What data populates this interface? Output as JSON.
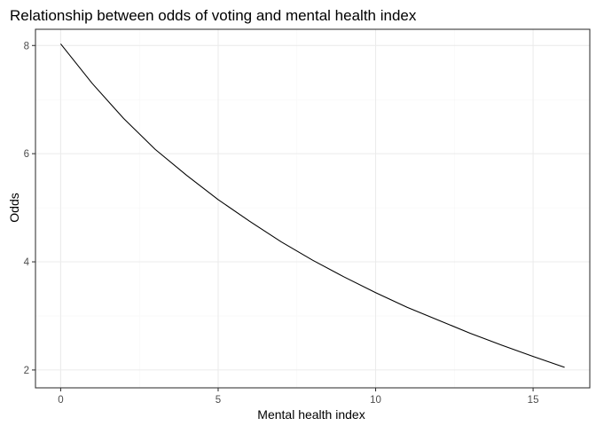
{
  "chart_data": {
    "type": "line",
    "title": "Relationship between odds of voting and mental health index",
    "xlabel": "Mental health index",
    "ylabel": "Odds",
    "xlim": [
      -0.8,
      16.8
    ],
    "ylim": [
      1.67,
      8.3
    ],
    "x_ticks": [
      0,
      5,
      10,
      15
    ],
    "y_ticks": [
      2,
      4,
      6,
      8
    ],
    "grid": true,
    "legend": "none",
    "colors": {
      "line": "#000000",
      "grid": "#ebebeb",
      "border": "#333333"
    },
    "series": [
      {
        "x": [
          0,
          1,
          2,
          3,
          4,
          5,
          6,
          7,
          8,
          9,
          10,
          11,
          12,
          13,
          14,
          15,
          16
        ],
        "y": [
          8.03,
          7.3,
          6.65,
          6.08,
          5.6,
          5.15,
          4.75,
          4.37,
          4.03,
          3.72,
          3.43,
          3.16,
          2.92,
          2.68,
          2.46,
          2.25,
          2.05
        ]
      }
    ]
  }
}
